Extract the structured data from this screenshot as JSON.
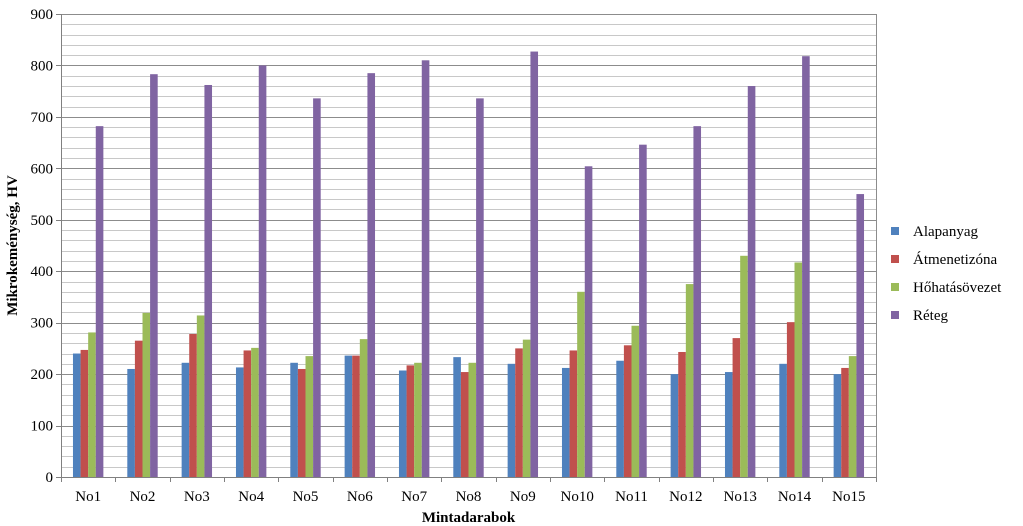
{
  "chart_data": {
    "type": "bar",
    "title": "",
    "xlabel": "Mintadarabok",
    "ylabel": "Mikrokeménység, HV",
    "ylim": [
      0,
      900
    ],
    "ytick_step": 100,
    "minor_grid_step": 20,
    "grid": true,
    "legend_position": "right",
    "categories": [
      "No1",
      "No2",
      "No3",
      "No4",
      "No5",
      "No6",
      "No7",
      "No8",
      "No9",
      "No10",
      "No11",
      "No12",
      "No13",
      "No14",
      "No15"
    ],
    "series": [
      {
        "name": "Alapanyag",
        "color": "#4f81bd",
        "values": [
          240,
          210,
          222,
          213,
          222,
          236,
          207,
          233,
          220,
          212,
          226,
          200,
          204,
          220,
          200
        ]
      },
      {
        "name": "Átmenetizóna",
        "color": "#c0504d",
        "values": [
          247,
          265,
          278,
          246,
          210,
          236,
          217,
          204,
          250,
          246,
          256,
          243,
          270,
          301,
          212
        ]
      },
      {
        "name": "Hőhatásövezet",
        "color": "#9bbb59",
        "values": [
          281,
          319,
          314,
          251,
          235,
          268,
          222,
          222,
          267,
          360,
          294,
          375,
          430,
          417,
          235
        ]
      },
      {
        "name": "Réteg",
        "color": "#8064a2",
        "values": [
          682,
          783,
          762,
          800,
          736,
          785,
          810,
          736,
          827,
          604,
          646,
          682,
          760,
          818,
          550
        ]
      }
    ]
  }
}
